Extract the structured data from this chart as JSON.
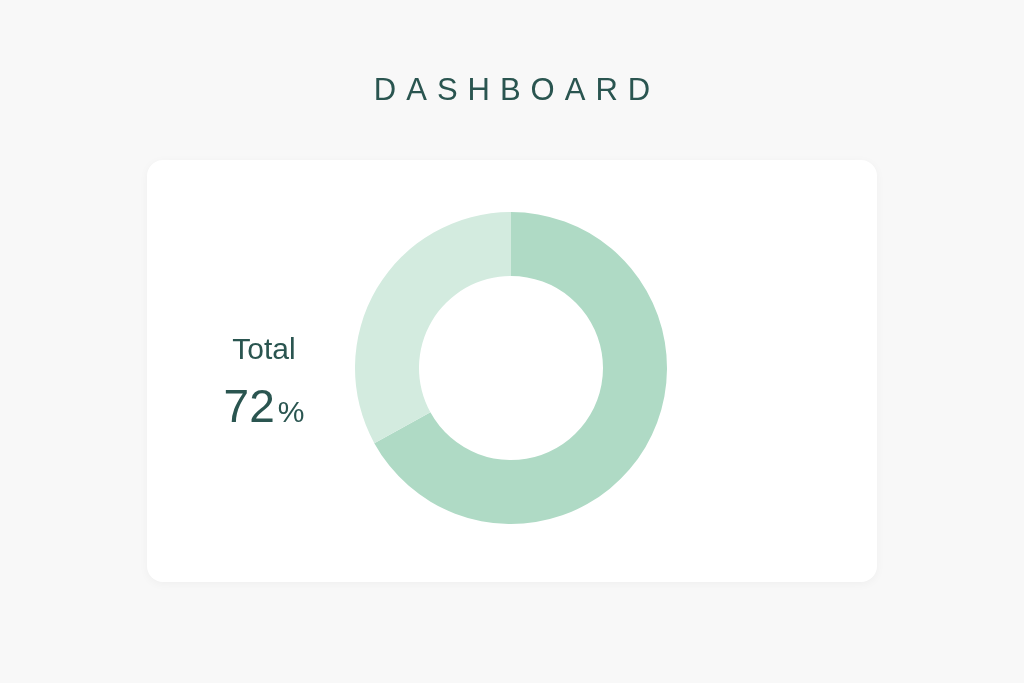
{
  "chart_data": {
    "type": "donut",
    "title": "DASHBOARD",
    "categories": [
      null,
      null
    ],
    "values": [
      67,
      33
    ],
    "colors": [
      "#afdac5",
      "#d3ebdf"
    ],
    "annotations": [
      "Total",
      "72%"
    ]
  }
}
